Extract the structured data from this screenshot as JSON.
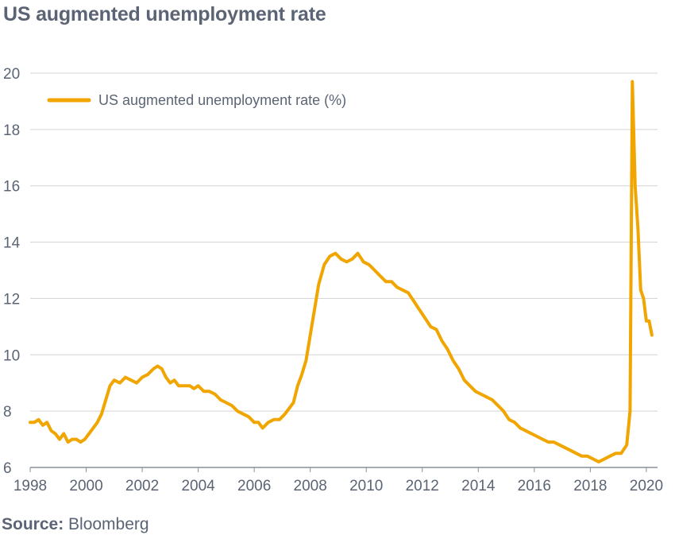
{
  "header": {
    "title": "US augmented unemployment rate"
  },
  "footer": {
    "source_label": "Source:",
    "source_text": "Bloomberg"
  },
  "chart_data": {
    "type": "line",
    "title": "US augmented unemployment rate",
    "xlabel": "",
    "ylabel": "",
    "xlim": [
      1998,
      2020.4
    ],
    "ylim": [
      6,
      20
    ],
    "x_ticks": [
      1998,
      2000,
      2002,
      2004,
      2006,
      2008,
      2010,
      2012,
      2014,
      2016,
      2018,
      2020
    ],
    "y_ticks": [
      6,
      8,
      10,
      12,
      14,
      16,
      18,
      20
    ],
    "grid": "horizontal",
    "legend_position": "top-left",
    "colors": {
      "line": "#f0a500",
      "grid": "#d3d3d3",
      "text": "#5b6474"
    },
    "series": [
      {
        "name": "US augmented unemployment rate (%)",
        "x": [
          1998.0,
          1998.15,
          1998.3,
          1998.45,
          1998.6,
          1998.75,
          1998.9,
          1999.05,
          1999.2,
          1999.35,
          1999.5,
          1999.65,
          1999.8,
          1999.95,
          2000.1,
          2000.25,
          2000.4,
          2000.55,
          2000.7,
          2000.85,
          2001.0,
          2001.2,
          2001.4,
          2001.6,
          2001.8,
          2002.0,
          2002.2,
          2002.4,
          2002.55,
          2002.7,
          2002.85,
          2003.0,
          2003.15,
          2003.3,
          2003.5,
          2003.7,
          2003.85,
          2004.0,
          2004.2,
          2004.4,
          2004.6,
          2004.8,
          2005.0,
          2005.2,
          2005.4,
          2005.6,
          2005.8,
          2006.0,
          2006.15,
          2006.3,
          2006.5,
          2006.7,
          2006.9,
          2007.1,
          2007.25,
          2007.4,
          2007.55,
          2007.7,
          2007.85,
          2008.0,
          2008.15,
          2008.3,
          2008.5,
          2008.7,
          2008.9,
          2009.1,
          2009.3,
          2009.5,
          2009.7,
          2009.9,
          2010.1,
          2010.3,
          2010.5,
          2010.7,
          2010.9,
          2011.1,
          2011.3,
          2011.5,
          2011.7,
          2011.9,
          2012.1,
          2012.3,
          2012.5,
          2012.7,
          2012.9,
          2013.1,
          2013.3,
          2013.5,
          2013.7,
          2013.9,
          2014.1,
          2014.3,
          2014.5,
          2014.7,
          2014.9,
          2015.1,
          2015.3,
          2015.5,
          2015.7,
          2015.9,
          2016.1,
          2016.3,
          2016.5,
          2016.7,
          2016.9,
          2017.1,
          2017.3,
          2017.5,
          2017.7,
          2017.9,
          2018.1,
          2018.3,
          2018.5,
          2018.7,
          2018.9,
          2019.1,
          2019.3,
          2019.42,
          2019.5,
          2019.6,
          2019.7,
          2019.8,
          2019.9,
          2020.0,
          2020.1,
          2020.2
        ],
        "values": [
          7.6,
          7.6,
          7.7,
          7.5,
          7.6,
          7.3,
          7.2,
          7.0,
          7.2,
          6.9,
          7.0,
          7.0,
          6.9,
          7.0,
          7.2,
          7.4,
          7.6,
          7.9,
          8.4,
          8.9,
          9.1,
          9.0,
          9.2,
          9.1,
          9.0,
          9.2,
          9.3,
          9.5,
          9.6,
          9.5,
          9.2,
          9.0,
          9.1,
          8.9,
          8.9,
          8.9,
          8.8,
          8.9,
          8.7,
          8.7,
          8.6,
          8.4,
          8.3,
          8.2,
          8.0,
          7.9,
          7.8,
          7.6,
          7.6,
          7.4,
          7.6,
          7.7,
          7.7,
          7.9,
          8.1,
          8.3,
          8.9,
          9.3,
          9.8,
          10.7,
          11.6,
          12.5,
          13.2,
          13.5,
          13.6,
          13.4,
          13.3,
          13.4,
          13.6,
          13.3,
          13.2,
          13.0,
          12.8,
          12.6,
          12.6,
          12.4,
          12.3,
          12.2,
          11.9,
          11.6,
          11.3,
          11.0,
          10.9,
          10.5,
          10.2,
          9.8,
          9.5,
          9.1,
          8.9,
          8.7,
          8.6,
          8.5,
          8.4,
          8.2,
          8.0,
          7.7,
          7.6,
          7.4,
          7.3,
          7.2,
          7.1,
          7.0,
          6.9,
          6.9,
          6.8,
          6.7,
          6.6,
          6.5,
          6.4,
          6.4,
          6.3,
          6.2,
          6.3,
          6.4,
          6.5,
          6.5,
          6.8,
          8.0,
          19.7,
          16.0,
          14.5,
          12.3,
          12.0,
          11.2,
          11.2,
          10.7
        ]
      }
    ]
  }
}
